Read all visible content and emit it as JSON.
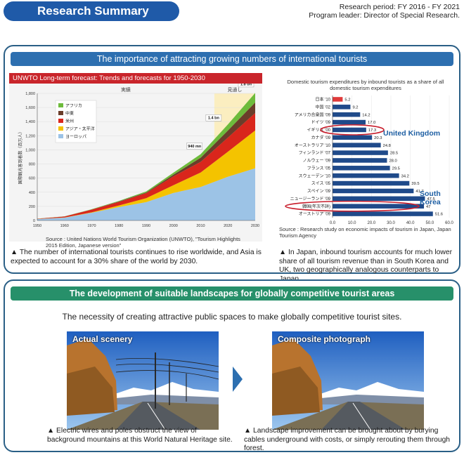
{
  "header": {
    "title": "Research Summary",
    "period": "Research period: FY 2016 - FY 2021",
    "leader": "Program leader: Director of Special Research."
  },
  "section1": {
    "heading": "The importance of attracting growing numbers of international tourists",
    "unwto": {
      "title": "UNWTO Long-term forecast: Trends and forecasts for 1950-2030",
      "source": "Source : United Nations World Tourism Organization (UNWTO), \"Tourism Highlights 2015 Edition, Japanese version\"",
      "caption": "▲ The number of international tourists continues to rise worldwide, and Asia is expected to account for a 30% share of the world by 2030."
    },
    "expend": {
      "title_line1": "Domestic tourism expenditures by inbound tourists as a share of all",
      "title_line2": "domestic tourism expenditures",
      "label_uk": "United Kingdom",
      "label_korea": "South Korea",
      "source": "Source : Research study on economic impacts of tourism in Japan, Japan Tourism Agency",
      "caption": "▲ In Japan, inbound tourism accounts for much lower share of all tourism revenue than in South Korea and UK, two geographically analogous counterparts to Japan."
    }
  },
  "section2": {
    "heading": "The development of suitable landscapes for globally competitive tourist areas",
    "subheading": "The necessity of creating attractive public spaces to make globally competitive tourist sites.",
    "left_label": "Actual scenery",
    "right_label": "Composite photograph",
    "left_caption": "▲ Electric wires and poles obstruct the view of background mountains at this World Natural Heritage site.",
    "right_caption": "▲ Landscape improvement can be brought about by burying cables underground with costs, or simply rerouting them through forest."
  },
  "chart_data": [
    {
      "type": "area",
      "title": "UNWTO Long-term forecast: Trends and forecasts for 1950-2030",
      "ylabel": "国際観光客到着数（百万人）",
      "region_labels": [
        "実績",
        "見通し"
      ],
      "x": [
        1950,
        1960,
        1970,
        1980,
        1990,
        2000,
        2010,
        2020,
        2030
      ],
      "xlim": [
        1950,
        2030
      ],
      "ylim": [
        0,
        1800
      ],
      "y_ticks": [
        0,
        200,
        400,
        600,
        800,
        1000,
        1200,
        1400,
        1600,
        1800
      ],
      "series": [
        {
          "name": "ヨーロッパ",
          "color": "#9cc3e6",
          "values": [
            20,
            40,
            110,
            190,
            260,
            390,
            475,
            620,
            740
          ]
        },
        {
          "name": "アジア・太平洋",
          "color": "#f4c300",
          "values": [
            1,
            2,
            6,
            22,
            56,
            110,
            205,
            355,
            535
          ]
        },
        {
          "name": "米州",
          "color": "#d9261c",
          "values": [
            4,
            14,
            38,
            52,
            72,
            125,
            150,
            200,
            248
          ]
        },
        {
          "name": "中東",
          "color": "#6a3d2a",
          "values": [
            0,
            1,
            2,
            6,
            9,
            24,
            60,
            101,
            149
          ]
        },
        {
          "name": "アフリカ",
          "color": "#6dbb3c",
          "values": [
            1,
            2,
            4,
            7,
            15,
            28,
            50,
            85,
            134
          ]
        }
      ],
      "annotations": [
        "940 mn",
        "1.4 bn",
        "1.8 bn"
      ],
      "legend": "top-left"
    },
    {
      "type": "bar",
      "orientation": "horizontal",
      "title": "Domestic tourism expenditures by inbound tourists as a share of all domestic tourism expenditures",
      "categories": [
        "日本 '10",
        "中国 '02",
        "アメリカ合衆国 '09",
        "ドイツ '09",
        "イギリス '00",
        "カナダ '09",
        "オーストラリア '10",
        "フィンランド '07",
        "ノルウェー '09",
        "フランス '05",
        "スウェーデン '10",
        "スイス '05",
        "スペイン '09",
        "ニュージーランド '09",
        "韓国(年次不詳)",
        "オーストリア '09"
      ],
      "values": [
        5.2,
        9.2,
        14.2,
        17.0,
        17.3,
        20.3,
        24.8,
        28.5,
        28.0,
        29.5,
        34.2,
        39.5,
        41.7,
        47.5,
        47.0,
        51.6
      ],
      "value_labels": [
        "5.2",
        "9.2",
        "14.2",
        "17.0",
        "17.3",
        "20.3",
        "24.8",
        "28.5",
        "28.0",
        "29.5",
        "34.2",
        "39.5",
        "41.7",
        "47.5",
        "47",
        "51.6"
      ],
      "xlim": [
        0,
        60
      ],
      "x_ticks": [
        "0.0",
        "10.0",
        "20.0",
        "30.0",
        "40.0",
        "50.0",
        "60.0"
      ],
      "colors": {
        "japan": "#e03a3a",
        "others": "#1f4a8a",
        "highlight": "#c81e2c"
      }
    }
  ]
}
